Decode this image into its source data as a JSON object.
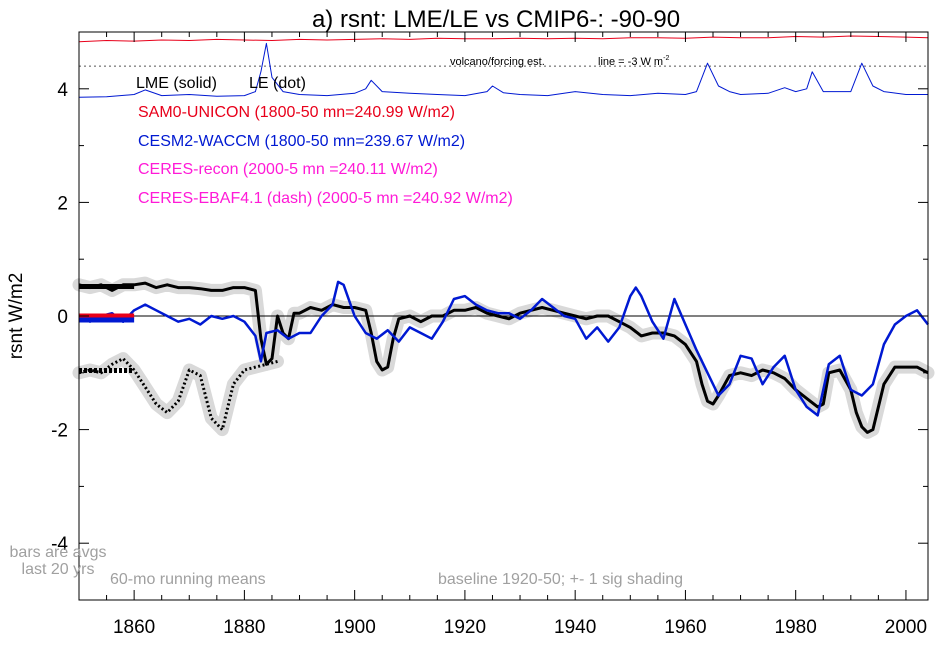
{
  "chart_data": {
    "type": "line",
    "title": "a) rsnt: LME/LE vs CMIP6-: -90-90",
    "ylabel": "rsnt W/m2",
    "xlabel": "",
    "xlim": [
      1850,
      2004
    ],
    "ylim": [
      -5,
      5
    ],
    "x_ticks": [
      1860,
      1880,
      1900,
      1920,
      1940,
      1960,
      1980,
      2000
    ],
    "y_ticks": [
      -4,
      -2,
      0,
      2,
      4
    ],
    "legend": {
      "style_line": {
        "lme": "LME (solid)",
        "le": "LE (dot)"
      },
      "entries": [
        {
          "label": "SAM0-UNICON (1800-50 mn=240.99 W/m2)",
          "color": "#e8001a"
        },
        {
          "label": "CESM2-WACCM (1800-50 mn=239.67 W/m2)",
          "color": "#0019d2"
        },
        {
          "label": "CERES-recon (2000-5 mn =240.11 W/m2)",
          "color": "#ff1ad7"
        },
        {
          "label": "CERES-EBAF4.1 (dash) (2000-5 mn =240.92 W/m2)",
          "color": "#ff1ad7"
        }
      ]
    },
    "annotations": {
      "volcano_label": "volcano/forcing est.",
      "line_label": "line = -3 W m",
      "line_label_sup": "-2",
      "bars_note_1": "bars are avgs",
      "bars_note_2": "last 20 yrs",
      "running_means": "60-mo running means",
      "baseline": "baseline 1920-50; +- 1 sig shading"
    },
    "reference_line_y": 4.4,
    "series": [
      {
        "key": "lme_solid",
        "color": "#000000",
        "style": "solid",
        "x": [
          1850,
          1852,
          1854,
          1856,
          1858,
          1860,
          1862,
          1864,
          1866,
          1868,
          1870,
          1872,
          1874,
          1876,
          1878,
          1880,
          1882,
          1883,
          1884,
          1885,
          1886,
          1887,
          1888,
          1889,
          1890,
          1892,
          1894,
          1896,
          1898,
          1900,
          1902,
          1903,
          1904,
          1905,
          1906,
          1907,
          1908,
          1910,
          1912,
          1914,
          1916,
          1918,
          1920,
          1922,
          1924,
          1926,
          1928,
          1930,
          1932,
          1934,
          1936,
          1938,
          1940,
          1942,
          1944,
          1946,
          1948,
          1950,
          1952,
          1954,
          1956,
          1958,
          1960,
          1962,
          1963,
          1964,
          1965,
          1966,
          1968,
          1970,
          1972,
          1974,
          1976,
          1978,
          1980,
          1982,
          1984,
          1985,
          1986,
          1988,
          1990,
          1991,
          1992,
          1993,
          1994,
          1996,
          1998,
          2000,
          2002,
          2004
        ],
        "y": [
          0.55,
          0.5,
          0.55,
          0.45,
          0.55,
          0.55,
          0.58,
          0.5,
          0.55,
          0.5,
          0.5,
          0.48,
          0.45,
          0.45,
          0.5,
          0.5,
          0.45,
          -0.4,
          -0.85,
          -0.75,
          0.0,
          -0.3,
          -0.4,
          0.05,
          0.05,
          0.15,
          0.1,
          0.2,
          0.15,
          0.15,
          0.1,
          -0.3,
          -0.8,
          -0.95,
          -0.9,
          -0.4,
          -0.05,
          0.0,
          -0.1,
          0.0,
          0.0,
          0.1,
          0.1,
          0.15,
          0.05,
          0.0,
          -0.05,
          0.05,
          0.1,
          0.15,
          0.1,
          0.05,
          0.0,
          -0.05,
          0.0,
          0.0,
          -0.1,
          -0.2,
          -0.35,
          -0.3,
          -0.3,
          -0.35,
          -0.5,
          -0.8,
          -1.2,
          -1.5,
          -1.55,
          -1.4,
          -1.05,
          -1.0,
          -1.05,
          -0.95,
          -1.0,
          -1.1,
          -1.3,
          -1.45,
          -1.6,
          -1.55,
          -1.0,
          -0.95,
          -1.3,
          -1.7,
          -1.95,
          -2.05,
          -2.0,
          -1.2,
          -0.9,
          -0.9,
          -0.9,
          -1.0
        ]
      },
      {
        "key": "le_dot",
        "color": "#000000",
        "style": "dot",
        "x": [
          1850,
          1852,
          1854,
          1856,
          1858,
          1860,
          1862,
          1864,
          1866,
          1868,
          1870,
          1872,
          1874,
          1876,
          1878,
          1880,
          1882,
          1884,
          1886
        ],
        "y": [
          -1.0,
          -0.95,
          -1.0,
          -0.85,
          -0.75,
          -0.95,
          -1.25,
          -1.55,
          -1.7,
          -1.5,
          -0.95,
          -1.05,
          -1.8,
          -2.0,
          -1.2,
          -0.95,
          -0.9,
          -0.85,
          -0.8
        ]
      },
      {
        "key": "cesm2_waccm",
        "color": "#0019d2",
        "style": "solid",
        "x": [
          1850,
          1852,
          1854,
          1856,
          1858,
          1860,
          1862,
          1864,
          1866,
          1868,
          1870,
          1872,
          1874,
          1876,
          1878,
          1880,
          1882,
          1883,
          1884,
          1886,
          1888,
          1890,
          1892,
          1894,
          1896,
          1897,
          1898,
          1900,
          1902,
          1904,
          1906,
          1908,
          1910,
          1912,
          1914,
          1916,
          1918,
          1920,
          1922,
          1924,
          1926,
          1928,
          1930,
          1932,
          1934,
          1936,
          1938,
          1940,
          1942,
          1944,
          1946,
          1948,
          1950,
          1951,
          1952,
          1954,
          1956,
          1958,
          1960,
          1962,
          1964,
          1966,
          1968,
          1970,
          1972,
          1974,
          1976,
          1978,
          1980,
          1982,
          1984,
          1986,
          1988,
          1990,
          1992,
          1994,
          1996,
          1998,
          2000,
          2002,
          2004
        ],
        "y": [
          0.0,
          -0.1,
          0.0,
          0.05,
          -0.1,
          0.1,
          0.2,
          0.1,
          0.0,
          -0.1,
          -0.05,
          -0.15,
          0.0,
          -0.05,
          0.0,
          -0.1,
          -0.35,
          -0.8,
          -0.3,
          -0.25,
          -0.4,
          -0.3,
          -0.3,
          0.0,
          0.2,
          0.6,
          0.55,
          0.0,
          -0.3,
          -0.4,
          -0.25,
          -0.45,
          -0.2,
          -0.3,
          -0.4,
          -0.1,
          0.3,
          0.35,
          0.2,
          0.1,
          0.05,
          0.05,
          -0.05,
          0.1,
          0.3,
          0.15,
          0.0,
          -0.05,
          -0.4,
          -0.2,
          -0.45,
          -0.2,
          0.35,
          0.5,
          0.35,
          -0.1,
          -0.4,
          0.3,
          -0.15,
          -0.6,
          -1.0,
          -1.4,
          -1.2,
          -0.7,
          -0.75,
          -1.2,
          -0.9,
          -0.7,
          -1.3,
          -1.6,
          -1.75,
          -0.85,
          -0.7,
          -1.3,
          -1.4,
          -1.2,
          -0.5,
          -0.15,
          0.0,
          0.1,
          -0.15
        ]
      },
      {
        "key": "sam0_volcano",
        "color": "#e8001a",
        "style": "solid",
        "x": [
          1850,
          1855,
          1860,
          1865,
          1870,
          1875,
          1880,
          1885,
          1890,
          1895,
          1900,
          1905,
          1910,
          1915,
          1920,
          1925,
          1930,
          1935,
          1940,
          1945,
          1950,
          1955,
          1960,
          1965,
          1970,
          1975,
          1980,
          1985,
          1990,
          1995,
          2000,
          2004
        ],
        "y": [
          4.83,
          4.85,
          4.84,
          4.86,
          4.85,
          4.87,
          4.86,
          4.85,
          4.87,
          4.86,
          4.87,
          4.88,
          4.87,
          4.89,
          4.88,
          4.88,
          4.89,
          4.88,
          4.89,
          4.88,
          4.9,
          4.9,
          4.89,
          4.91,
          4.9,
          4.9,
          4.92,
          4.91,
          4.93,
          4.92,
          4.91,
          4.9
        ]
      },
      {
        "key": "cesm2_volcano",
        "color": "#0019d2",
        "style": "solid",
        "x": [
          1850,
          1855,
          1860,
          1862,
          1865,
          1870,
          1875,
          1880,
          1882,
          1883,
          1884,
          1885,
          1887,
          1890,
          1895,
          1900,
          1902,
          1903,
          1905,
          1910,
          1915,
          1920,
          1924,
          1925,
          1927,
          1930,
          1935,
          1940,
          1945,
          1950,
          1955,
          1960,
          1962,
          1963,
          1964,
          1966,
          1968,
          1970,
          1975,
          1978,
          1980,
          1982,
          1983,
          1985,
          1990,
          1991,
          1992,
          1994,
          1996,
          2000,
          2004
        ],
        "y": [
          3.85,
          3.86,
          3.9,
          3.98,
          3.88,
          3.9,
          3.87,
          3.88,
          3.95,
          4.3,
          4.8,
          4.2,
          3.95,
          3.9,
          3.88,
          3.92,
          4.0,
          4.15,
          3.95,
          3.92,
          3.9,
          3.88,
          3.95,
          4.05,
          3.93,
          3.9,
          3.88,
          3.95,
          3.9,
          3.88,
          3.92,
          3.9,
          3.95,
          4.2,
          4.45,
          4.05,
          3.95,
          3.9,
          3.92,
          4.02,
          3.95,
          4.0,
          4.3,
          3.95,
          3.95,
          4.2,
          4.45,
          4.05,
          3.95,
          3.9,
          3.9
        ]
      },
      {
        "key": "lme_bar",
        "color": "#000000",
        "style": "bar",
        "x": [
          1850,
          1860
        ],
        "y": [
          0.52,
          0.52
        ]
      },
      {
        "key": "le_bar",
        "color": "#000000",
        "style": "bar-dot",
        "x": [
          1850,
          1860
        ],
        "y": [
          -0.96,
          -0.96
        ]
      },
      {
        "key": "sam0_bar",
        "color": "#e8001a",
        "style": "bar",
        "x": [
          1850,
          1860
        ],
        "y": [
          0.0,
          0.0
        ]
      },
      {
        "key": "cesm2_bar",
        "color": "#0019d2",
        "style": "bar",
        "x": [
          1850,
          1860
        ],
        "y": [
          -0.07,
          -0.07
        ]
      }
    ]
  }
}
